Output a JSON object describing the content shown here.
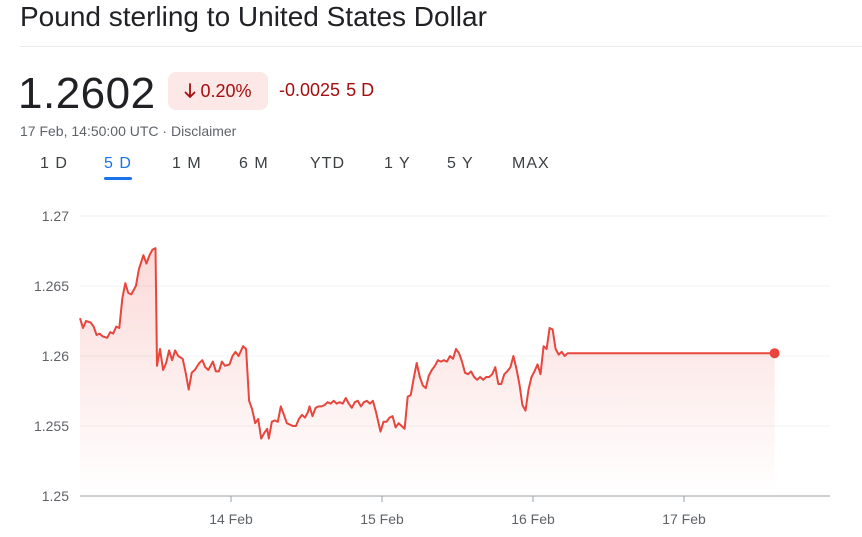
{
  "header": {
    "title": "Pound sterling to United States Dollar"
  },
  "quote": {
    "price": "1.2602",
    "percent_change": "0.20%",
    "direction": "down",
    "abs_change": "-0.0025",
    "range_label": "5 D",
    "timestamp": "17 Feb, 14:50:00 UTC",
    "separator": "·",
    "disclaimer": "Disclaimer"
  },
  "tabs": [
    {
      "label": "1 D",
      "active": false
    },
    {
      "label": "5 D",
      "active": true
    },
    {
      "label": "1 M",
      "active": false
    },
    {
      "label": "6 M",
      "active": false
    },
    {
      "label": "YTD",
      "active": false
    },
    {
      "label": "1 Y",
      "active": false
    },
    {
      "label": "5 Y",
      "active": false
    },
    {
      "label": "MAX",
      "active": false
    }
  ],
  "colors": {
    "line": "#e8453c",
    "negative_text": "#a50e0e",
    "negative_bg": "#fce8e6",
    "active_tab": "#1a73e8",
    "grid": "#f1f3f4"
  },
  "chart_data": {
    "type": "area",
    "title": "",
    "xlabel": "",
    "ylabel": "",
    "ylim": [
      1.25,
      1.27
    ],
    "yticks": [
      "1.27",
      "1.265",
      "1.26",
      "1.255",
      "1.25"
    ],
    "ytick_values": [
      1.27,
      1.265,
      1.26,
      1.255,
      1.25
    ],
    "x_unit": "days since 13 Feb 00:00",
    "xlim": [
      0,
      4.96
    ],
    "xticks": [
      {
        "label": "14 Feb",
        "x": 1.0
      },
      {
        "label": "15 Feb",
        "x": 2.0
      },
      {
        "label": "16 Feb",
        "x": 3.0
      },
      {
        "label": "17 Feb",
        "x": 4.0
      }
    ],
    "grid": true,
    "series": [
      {
        "values": [
          [
            0.0,
            1.2627
          ],
          [
            0.02,
            1.262
          ],
          [
            0.04,
            1.2625
          ],
          [
            0.07,
            1.2624
          ],
          [
            0.09,
            1.2621
          ],
          [
            0.11,
            1.2615
          ],
          [
            0.13,
            1.2616
          ],
          [
            0.15,
            1.2614
          ],
          [
            0.18,
            1.2613
          ],
          [
            0.2,
            1.2617
          ],
          [
            0.22,
            1.2616
          ],
          [
            0.24,
            1.2621
          ],
          [
            0.26,
            1.262
          ],
          [
            0.28,
            1.2641
          ],
          [
            0.3,
            1.2652
          ],
          [
            0.32,
            1.2645
          ],
          [
            0.34,
            1.2644
          ],
          [
            0.37,
            1.265
          ],
          [
            0.39,
            1.2662
          ],
          [
            0.42,
            1.2672
          ],
          [
            0.44,
            1.2666
          ],
          [
            0.46,
            1.2672
          ],
          [
            0.48,
            1.2676
          ],
          [
            0.5,
            1.2677
          ],
          [
            0.51,
            1.2593
          ],
          [
            0.53,
            1.2605
          ],
          [
            0.55,
            1.259
          ],
          [
            0.57,
            1.2595
          ],
          [
            0.59,
            1.2604
          ],
          [
            0.61,
            1.2597
          ],
          [
            0.63,
            1.2604
          ],
          [
            0.65,
            1.26
          ],
          [
            0.68,
            1.2598
          ],
          [
            0.7,
            1.2588
          ],
          [
            0.72,
            1.2576
          ],
          [
            0.74,
            1.2588
          ],
          [
            0.76,
            1.259
          ],
          [
            0.79,
            1.2595
          ],
          [
            0.81,
            1.2597
          ],
          [
            0.83,
            1.2592
          ],
          [
            0.85,
            1.259
          ],
          [
            0.88,
            1.2596
          ],
          [
            0.9,
            1.2589
          ],
          [
            0.92,
            1.2589
          ],
          [
            0.94,
            1.2596
          ],
          [
            0.96,
            1.2593
          ],
          [
            0.99,
            1.2594
          ],
          [
            1.01,
            1.26
          ],
          [
            1.03,
            1.2603
          ],
          [
            1.05,
            1.26
          ],
          [
            1.08,
            1.2607
          ],
          [
            1.1,
            1.2605
          ],
          [
            1.12,
            1.2568
          ],
          [
            1.14,
            1.2562
          ],
          [
            1.16,
            1.2552
          ],
          [
            1.18,
            1.2555
          ],
          [
            1.2,
            1.2541
          ],
          [
            1.22,
            1.2545
          ],
          [
            1.24,
            1.2548
          ],
          [
            1.25,
            1.2541
          ],
          [
            1.27,
            1.2553
          ],
          [
            1.29,
            1.2554
          ],
          [
            1.31,
            1.2553
          ],
          [
            1.33,
            1.2564
          ],
          [
            1.35,
            1.2558
          ],
          [
            1.37,
            1.2552
          ],
          [
            1.39,
            1.2551
          ],
          [
            1.41,
            1.255
          ],
          [
            1.43,
            1.255
          ],
          [
            1.45,
            1.2555
          ],
          [
            1.47,
            1.2558
          ],
          [
            1.49,
            1.2556
          ],
          [
            1.51,
            1.256
          ],
          [
            1.52,
            1.2564
          ],
          [
            1.54,
            1.2557
          ],
          [
            1.56,
            1.2563
          ],
          [
            1.58,
            1.2564
          ],
          [
            1.6,
            1.2564
          ],
          [
            1.62,
            1.2565
          ],
          [
            1.64,
            1.2567
          ],
          [
            1.66,
            1.2566
          ],
          [
            1.68,
            1.2568
          ],
          [
            1.7,
            1.2566
          ],
          [
            1.72,
            1.2567
          ],
          [
            1.74,
            1.2566
          ],
          [
            1.76,
            1.257
          ],
          [
            1.78,
            1.2566
          ],
          [
            1.8,
            1.2563
          ],
          [
            1.82,
            1.2567
          ],
          [
            1.84,
            1.2568
          ],
          [
            1.86,
            1.2564
          ],
          [
            1.88,
            1.2567
          ],
          [
            1.9,
            1.2568
          ],
          [
            1.92,
            1.2566
          ],
          [
            1.94,
            1.2568
          ],
          [
            1.96,
            1.256
          ],
          [
            1.99,
            1.2546
          ],
          [
            2.01,
            1.2553
          ],
          [
            2.03,
            1.2553
          ],
          [
            2.05,
            1.2556
          ],
          [
            2.07,
            1.2557
          ],
          [
            2.09,
            1.2549
          ],
          [
            2.11,
            1.2552
          ],
          [
            2.13,
            1.255
          ],
          [
            2.15,
            1.2548
          ],
          [
            2.17,
            1.2571
          ],
          [
            2.19,
            1.2572
          ],
          [
            2.21,
            1.2584
          ],
          [
            2.23,
            1.2595
          ],
          [
            2.25,
            1.2585
          ],
          [
            2.27,
            1.2579
          ],
          [
            2.29,
            1.2577
          ],
          [
            2.31,
            1.2586
          ],
          [
            2.33,
            1.259
          ],
          [
            2.35,
            1.2593
          ],
          [
            2.37,
            1.2597
          ],
          [
            2.39,
            1.2596
          ],
          [
            2.41,
            1.2597
          ],
          [
            2.43,
            1.2596
          ],
          [
            2.45,
            1.26
          ],
          [
            2.47,
            1.2598
          ],
          [
            2.49,
            1.2605
          ],
          [
            2.51,
            1.2602
          ],
          [
            2.53,
            1.2596
          ],
          [
            2.55,
            1.2588
          ],
          [
            2.57,
            1.2587
          ],
          [
            2.59,
            1.2589
          ],
          [
            2.61,
            1.2585
          ],
          [
            2.63,
            1.2583
          ],
          [
            2.65,
            1.2585
          ],
          [
            2.67,
            1.2583
          ],
          [
            2.69,
            1.2585
          ],
          [
            2.71,
            1.2585
          ],
          [
            2.73,
            1.2587
          ],
          [
            2.75,
            1.2592
          ],
          [
            2.77,
            1.258
          ],
          [
            2.79,
            1.258
          ],
          [
            2.81,
            1.2587
          ],
          [
            2.83,
            1.2589
          ],
          [
            2.85,
            1.2592
          ],
          [
            2.87,
            1.26
          ],
          [
            2.89,
            1.2591
          ],
          [
            2.91,
            1.258
          ],
          [
            2.93,
            1.2565
          ],
          [
            2.95,
            1.2561
          ],
          [
            2.97,
            1.2576
          ],
          [
            2.99,
            1.2585
          ],
          [
            3.01,
            1.2589
          ],
          [
            3.03,
            1.2594
          ],
          [
            3.05,
            1.2587
          ],
          [
            3.07,
            1.2607
          ],
          [
            3.09,
            1.2605
          ],
          [
            3.11,
            1.262
          ],
          [
            3.13,
            1.2619
          ],
          [
            3.15,
            1.2605
          ],
          [
            3.17,
            1.2601
          ],
          [
            3.19,
            1.2603
          ],
          [
            3.21,
            1.26
          ],
          [
            3.23,
            1.2602
          ],
          [
            3.25,
            1.2602
          ],
          [
            4.6,
            1.2602
          ]
        ]
      }
    ],
    "last_point_marker": true
  }
}
